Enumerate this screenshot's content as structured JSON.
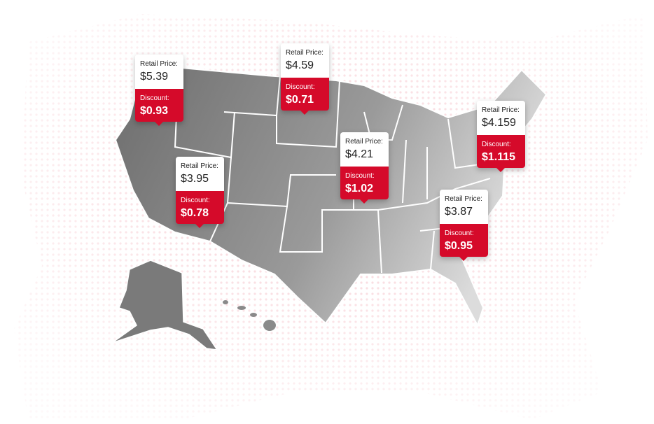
{
  "callouts": [
    {
      "retail_label": "Retail Price:",
      "retail_price": "$5.39",
      "discount_label": "Discount:",
      "discount": "$0.93"
    },
    {
      "retail_label": "Retail Price:",
      "retail_price": "$4.59",
      "discount_label": "Discount:",
      "discount": "$0.71"
    },
    {
      "retail_label": "Retail Price:",
      "retail_price": "$4.21",
      "discount_label": "Discount:",
      "discount": "$1.02"
    },
    {
      "retail_label": "Retail Price:",
      "retail_price": "$4.159",
      "discount_label": "Discount:",
      "discount": "$1.115"
    },
    {
      "retail_label": "Retail Price:",
      "retail_price": "$3.95",
      "discount_label": "Discount:",
      "discount": "$0.78"
    },
    {
      "retail_label": "Retail Price:",
      "retail_price": "$3.87",
      "discount_label": "Discount:",
      "discount": "$0.95"
    }
  ]
}
